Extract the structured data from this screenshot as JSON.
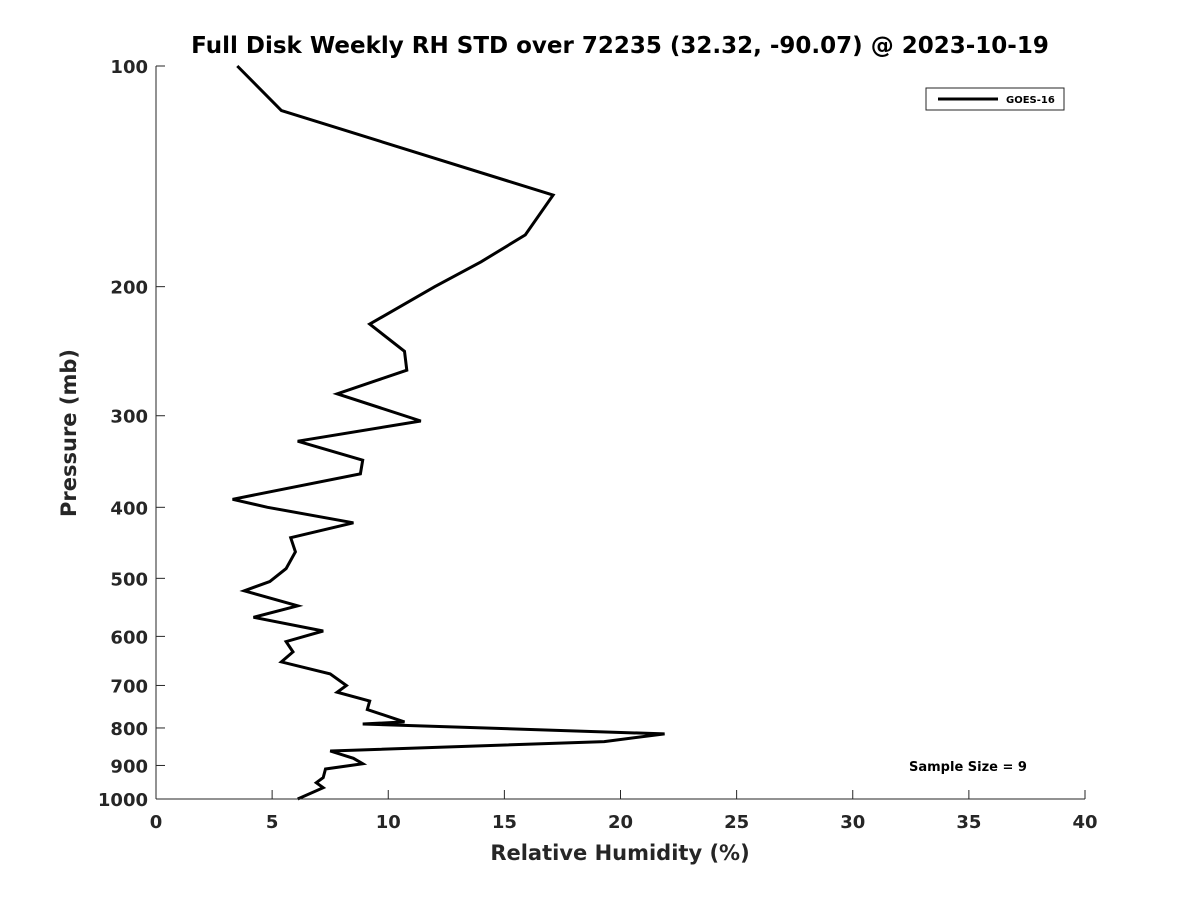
{
  "chart_data": {
    "type": "line",
    "title": "Full Disk Weekly RH STD over 72235 (32.32, -90.07) @ 2023-10-19",
    "xlabel": "Relative Humidity (%)",
    "ylabel": "Pressure (mb)",
    "xlim": [
      0,
      40
    ],
    "ylim": [
      100,
      1000
    ],
    "y_scale": "log",
    "y_reversed": true,
    "x_ticks": [
      "0",
      "5",
      "10",
      "15",
      "20",
      "25",
      "30",
      "35",
      "40"
    ],
    "y_ticks": [
      "100",
      "200",
      "300",
      "400",
      "500",
      "600",
      "700",
      "800",
      "900",
      "1000"
    ],
    "grid": false,
    "legend": {
      "position": "top-right",
      "entries": [
        "GOES-16"
      ]
    },
    "annotation": "Sample Size = 9",
    "series": [
      {
        "name": "GOES-16",
        "color": "#000000",
        "x": [
          3.5,
          5.4,
          17.1,
          15.9,
          14.0,
          12.0,
          9.2,
          10.7,
          10.8,
          7.8,
          11.4,
          6.1,
          8.9,
          8.8,
          3.3,
          4.8,
          8.5,
          5.8,
          6.0,
          5.6,
          4.9,
          3.8,
          6.1,
          4.2,
          7.2,
          5.6,
          5.9,
          5.4,
          7.5,
          8.2,
          7.8,
          9.2,
          9.1,
          10.7,
          8.9,
          21.9,
          19.3,
          7.5,
          8.5,
          8.9,
          7.3,
          7.2,
          6.9,
          7.2,
          6.1
        ],
        "y": [
          100,
          115,
          150,
          170,
          185,
          200,
          225,
          245,
          260,
          280,
          305,
          325,
          345,
          360,
          390,
          400,
          420,
          440,
          460,
          485,
          505,
          520,
          545,
          565,
          590,
          610,
          630,
          650,
          675,
          700,
          715,
          735,
          755,
          785,
          790,
          815,
          835,
          860,
          880,
          895,
          910,
          935,
          950,
          965,
          1000
        ]
      }
    ]
  }
}
